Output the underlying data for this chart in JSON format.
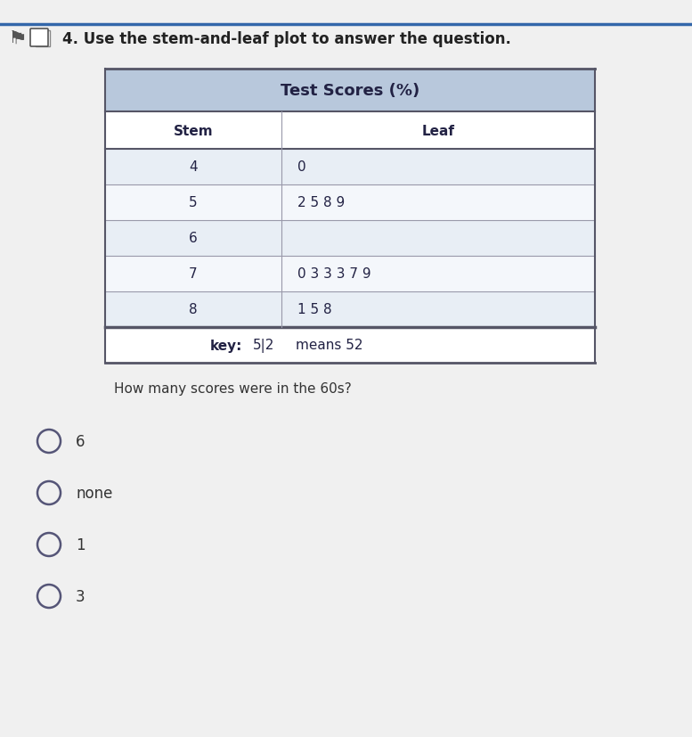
{
  "title": "Test Scores (%)",
  "col_header_stem": "Stem",
  "col_header_leaf": "Leaf",
  "rows": [
    {
      "stem": "4",
      "leaf": "0"
    },
    {
      "stem": "5",
      "leaf": "2 5 8 9"
    },
    {
      "stem": "6",
      "leaf": ""
    },
    {
      "stem": "7",
      "leaf": "0 3 3 3 7 9"
    },
    {
      "stem": "8",
      "leaf": "1 5 8"
    }
  ],
  "key_text": "key:",
  "key_pipe": "5|2",
  "key_means": "means 52",
  "question": "How many scores were in the 60s?",
  "choices": [
    "6",
    "none",
    "1",
    "3"
  ],
  "header_bg": "#b8c8dc",
  "row_bg_odd": "#e8eef5",
  "row_bg_even": "#f4f7fb",
  "key_row_bg": "#ffffff",
  "border_dark": "#555566",
  "border_light": "#9999aa",
  "text_color": "#222244",
  "title_fontsize": 13,
  "header_fontsize": 11,
  "data_fontsize": 11,
  "question_fontsize": 11,
  "choice_fontsize": 12,
  "header_text": "4. Use the stem-and-leaf plot to answer the question.",
  "bg_color": "#d8d8d8"
}
